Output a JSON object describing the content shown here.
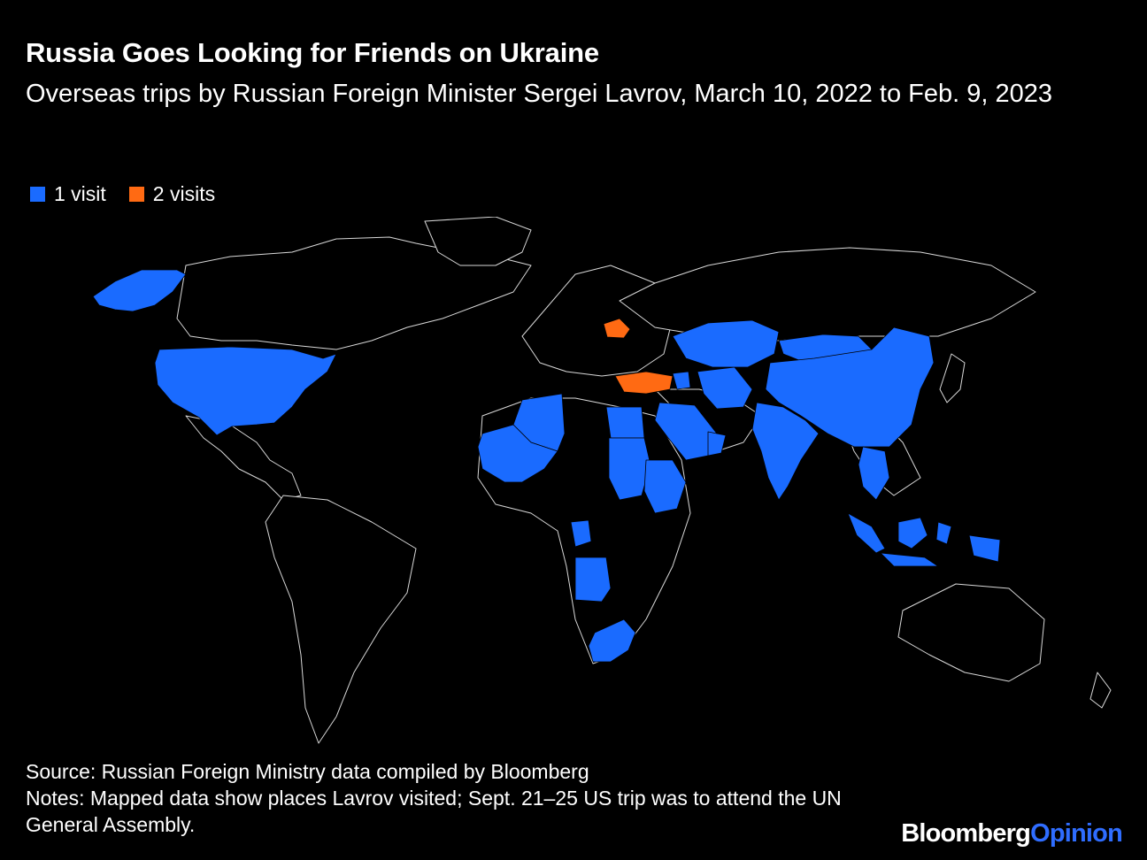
{
  "title": "Russia Goes Looking for Friends on Ukraine",
  "subtitle": "Overseas trips by Russian Foreign Minister Sergei Lavrov, March 10, 2022 to Feb. 9, 2023",
  "legend": [
    {
      "label": "1 visit",
      "color": "#1a6bff"
    },
    {
      "label": "2 visits",
      "color": "#ff6a13"
    }
  ],
  "colors": {
    "background": "#000000",
    "border": "#d8d8d8",
    "one_visit": "#1a6bff",
    "two_visits": "#ff6a13"
  },
  "visited": {
    "one_visit": [
      "United States",
      "China",
      "India",
      "Kazakhstan",
      "Uzbekistan",
      "Turkmenistan",
      "Tajikistan",
      "Kyrgyzstan",
      "Mongolia",
      "Iran",
      "Saudi Arabia",
      "United Arab Emirates",
      "Oman",
      "Egypt",
      "Sudan",
      "Eritrea",
      "Ethiopia",
      "Algeria",
      "Mali",
      "Mauritania",
      "Angola",
      "Congo",
      "South Africa",
      "Vietnam",
      "Cambodia",
      "Indonesia",
      "Armenia",
      "Azerbaijan",
      "Lebanon"
    ],
    "two_visits": [
      "Belarus",
      "Turkey"
    ]
  },
  "footer": {
    "source": "Source: Russian Foreign Ministry data compiled by Bloomberg",
    "notes": "Notes: Mapped data show places Lavrov visited; Sept. 21–25 US trip was to attend the UN General Assembly."
  },
  "brand": {
    "part1": "Bloomberg",
    "part2": "Opinion"
  }
}
